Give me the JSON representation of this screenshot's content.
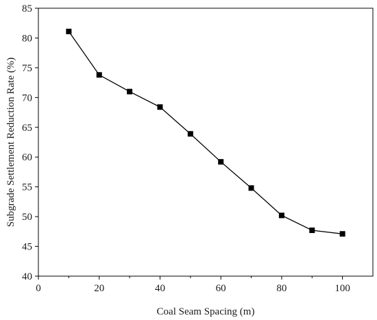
{
  "chart_data": {
    "type": "line",
    "xlabel": "Coal Seam Spacing (m)",
    "ylabel": "Subgrade Settlement Reduction Rate (%)",
    "x": [
      10,
      20,
      30,
      40,
      50,
      60,
      70,
      80,
      90,
      100
    ],
    "series": [
      {
        "values": [
          81.1,
          73.8,
          71.0,
          68.4,
          63.9,
          59.2,
          54.8,
          50.2,
          47.7,
          47.1
        ]
      }
    ],
    "xlim": [
      0,
      110
    ],
    "ylim": [
      40,
      85
    ],
    "xticks": [
      0,
      20,
      40,
      60,
      80,
      100
    ],
    "yticks": [
      40,
      45,
      50,
      55,
      60,
      65,
      70,
      75,
      80,
      85
    ],
    "grid": false,
    "marker": "square",
    "line_color": "#000000"
  }
}
